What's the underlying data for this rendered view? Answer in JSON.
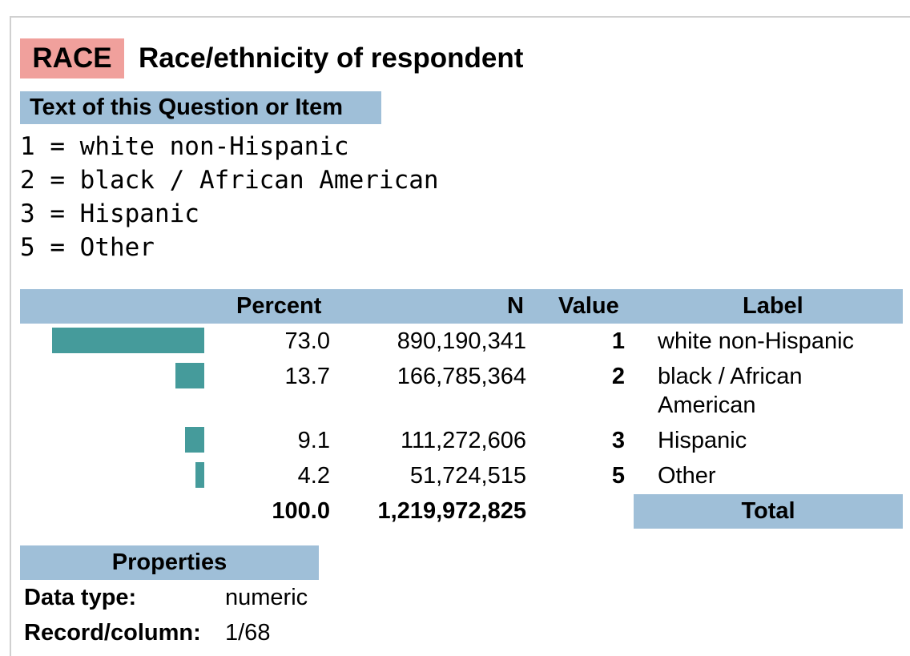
{
  "variable": {
    "name": "RACE",
    "title": "Race/ethnicity of respondent"
  },
  "question": {
    "header": "Text of this Question or Item",
    "lines": [
      "1 = white non-Hispanic",
      "2 = black / African American",
      "3 = Hispanic",
      "5 = Other"
    ]
  },
  "table": {
    "headers": {
      "percent": "Percent",
      "n": "N",
      "value": "Value",
      "label": "Label"
    },
    "rows": [
      {
        "percent": "73.0",
        "n": "890,190,341",
        "value": "1",
        "label": "white non-Hispanic",
        "pct": 73.0
      },
      {
        "percent": "13.7",
        "n": "166,785,364",
        "value": "2",
        "label": "black / African American",
        "pct": 13.7
      },
      {
        "percent": "9.1",
        "n": "111,272,606",
        "value": "3",
        "label": "Hispanic",
        "pct": 9.1
      },
      {
        "percent": "4.2",
        "n": "51,724,515",
        "value": "5",
        "label": "Other",
        "pct": 4.2
      }
    ],
    "total": {
      "percent": "100.0",
      "n": "1,219,972,825",
      "label": "Total"
    }
  },
  "properties": {
    "header": "Properties",
    "items": [
      {
        "key": "Data type:",
        "value": "numeric"
      },
      {
        "key": "Record/column:",
        "value": "1/68"
      }
    ]
  },
  "colors": {
    "bar": "#459b9b",
    "header": "#9fbfd8",
    "varname": "#f0a09c"
  }
}
